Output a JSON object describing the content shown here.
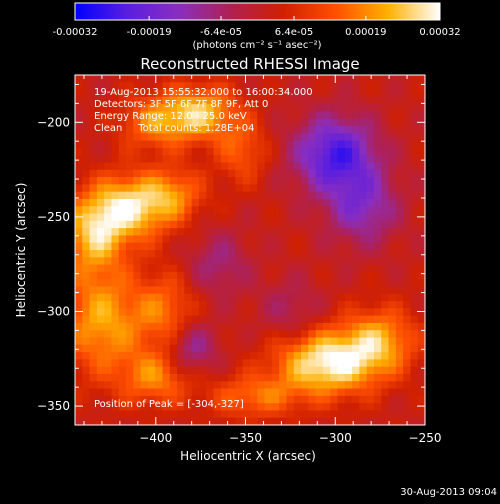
{
  "chart_data": {
    "type": "heatmap",
    "title": "Reconstructed RHESSI Image",
    "xlabel": "Heliocentric X (arcsec)",
    "ylabel": "Heliocentric Y (arcsec)",
    "xlim": [
      -445,
      -250
    ],
    "ylim": [
      -360,
      -175
    ],
    "x_ticks": [
      -400,
      -350,
      -300,
      -250
    ],
    "y_ticks": [
      -200,
      -250,
      -300,
      -350
    ],
    "colorbar": {
      "range": [
        -0.00032,
        0.00032
      ],
      "tick_values": [
        -0.00032,
        -0.00019,
        -6.4e-05,
        6.4e-05,
        0.00019,
        0.00032
      ],
      "tick_labels": [
        "-0.00032",
        "-0.00019",
        "-6.4e-05",
        "6.4e-05",
        "0.00019",
        "0.00032"
      ],
      "units_text": "(photons cm⁻² s⁻¹ asec⁻²)"
    },
    "annotations": [
      "19-Aug-2013 15:55:32.000 to 16:00:34.000",
      "Detectors: 3F 5F 6F 7F 8F 9F, Att 0",
      "Energy Range: 12.0 - 25.0 keV",
      "Clean     Total counts: 1.28E+04"
    ],
    "peak_label": "Position of Peak = [-304,-327]",
    "peak": [
      -304,
      -327
    ],
    "colormap": [
      "#0000ff",
      "#5a1ee0",
      "#8a2ec0",
      "#b02050",
      "#d02000",
      "#ff5000",
      "#ffb000",
      "#ffffff"
    ],
    "sources": [
      {
        "x": -375,
        "y": -195,
        "amp": 0.00022,
        "sx": 14,
        "sy": 10
      },
      {
        "x": -400,
        "y": -200,
        "amp": 0.00016,
        "sx": 14,
        "sy": 10
      },
      {
        "x": -352,
        "y": -215,
        "amp": 0.00012,
        "sx": 10,
        "sy": 12
      },
      {
        "x": -415,
        "y": -245,
        "amp": 0.00026,
        "sx": 16,
        "sy": 12
      },
      {
        "x": -435,
        "y": -260,
        "amp": 0.0002,
        "sx": 12,
        "sy": 14
      },
      {
        "x": -390,
        "y": -238,
        "amp": 0.00014,
        "sx": 12,
        "sy": 10
      },
      {
        "x": -430,
        "y": -305,
        "amp": 0.0002,
        "sx": 16,
        "sy": 20
      },
      {
        "x": -395,
        "y": -300,
        "amp": 0.00014,
        "sx": 12,
        "sy": 14
      },
      {
        "x": -400,
        "y": -335,
        "amp": 0.00016,
        "sx": 14,
        "sy": 10
      },
      {
        "x": -304,
        "y": -327,
        "amp": 0.0003,
        "sx": 20,
        "sy": 12
      },
      {
        "x": -275,
        "y": -315,
        "amp": 0.00018,
        "sx": 14,
        "sy": 12
      },
      {
        "x": -345,
        "y": -345,
        "amp": 0.00014,
        "sx": 18,
        "sy": 8
      },
      {
        "x": -300,
        "y": -217,
        "amp": -0.00026,
        "sx": 16,
        "sy": 14
      },
      {
        "x": -285,
        "y": -245,
        "amp": -0.00016,
        "sx": 14,
        "sy": 14
      },
      {
        "x": -365,
        "y": -275,
        "amp": -0.0001,
        "sx": 12,
        "sy": 12
      },
      {
        "x": -380,
        "y": -320,
        "amp": -0.00014,
        "sx": 10,
        "sy": 10
      },
      {
        "x": -325,
        "y": -300,
        "amp": -8e-05,
        "sx": 12,
        "sy": 12
      }
    ]
  },
  "footer": {
    "timestamp": "30-Aug-2013 09:04"
  }
}
